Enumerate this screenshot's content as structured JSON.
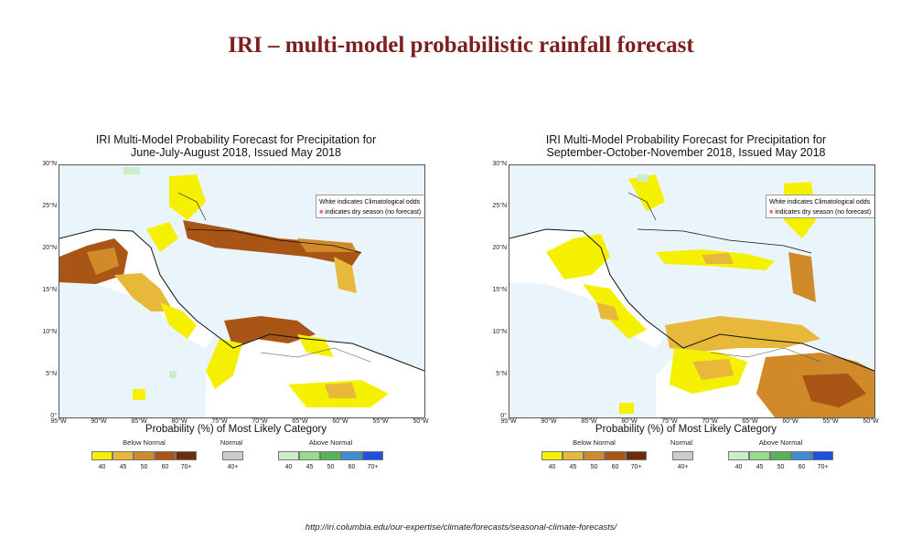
{
  "slide": {
    "title": "IRI – multi-model probabilistic rainfall forecast",
    "url": "http://iri.columbia.edu/our-expertise/climate/forecasts/seasonal-climate-forecasts/"
  },
  "colors": {
    "ocean": "#eaf4fb",
    "white_land": "#ffffff",
    "below": [
      "#f5f000",
      "#e8b83a",
      "#d08a2a",
      "#a85516",
      "#6a2e0a"
    ],
    "normal": "#cccccc",
    "above": [
      "#cbeec8",
      "#97dc8c",
      "#55b455",
      "#3a8fd0",
      "#1f4fe0"
    ]
  },
  "panels": [
    {
      "title_line1": "IRI Multi-Model Probability Forecast for Precipitation for",
      "title_line2": "June-July-August 2018, Issued May 2018"
    },
    {
      "title_line1": "IRI Multi-Model Probability Forecast for Precipitation for",
      "title_line2": "September-October-November 2018, Issued May 2018"
    }
  ],
  "map": {
    "lat_labels": [
      "30°N",
      "25°N",
      "20°N",
      "15°N",
      "10°N",
      "5°N",
      "0°"
    ],
    "lon_labels": [
      "95°W",
      "90°W",
      "85°W",
      "80°W",
      "75°W",
      "70°W",
      "65°W",
      "60°W",
      "55°W",
      "50°W"
    ],
    "legend_line1": "White indicates Climatological odds",
    "legend_line2": "indicates dry season (no forecast)",
    "legend_dot": "■"
  },
  "colorbar": {
    "title": "Probability (%) of Most Likely Category",
    "below_label": "Below Normal",
    "normal_label": "Normal",
    "above_label": "Above Normal",
    "below_ticks": [
      "40",
      "45",
      "50",
      "60",
      "70+"
    ],
    "normal_ticks": [
      "40+"
    ],
    "above_ticks": [
      "40",
      "45",
      "50",
      "60",
      "70+"
    ]
  }
}
